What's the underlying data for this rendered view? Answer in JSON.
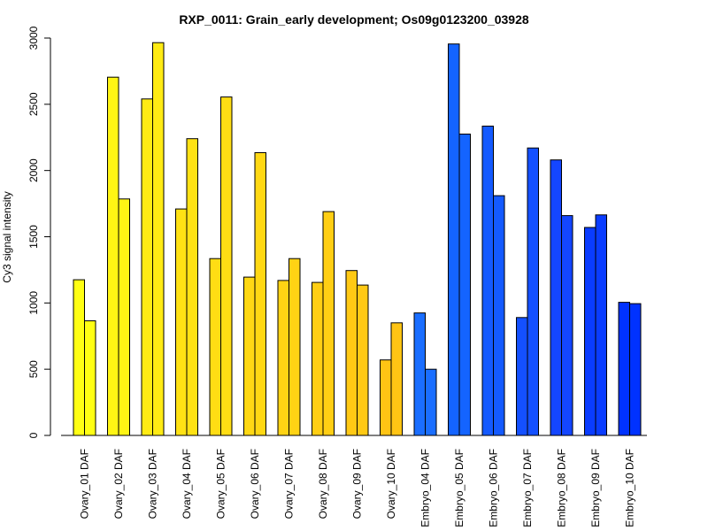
{
  "chart_data": {
    "type": "bar",
    "title": "RXP_0011: Grain_early development; Os09g0123200_03928",
    "xlabel": "",
    "ylabel": "Cy3 signal intensity",
    "ylim": [
      0,
      3000
    ],
    "yticks": [
      0,
      500,
      1000,
      1500,
      2000,
      2500,
      3000
    ],
    "grid": false,
    "legend": "none",
    "categories": [
      "Ovary_01 DAF",
      "Ovary_02 DAF",
      "Ovary_03 DAF",
      "Ovary_04 DAF",
      "Ovary_05 DAF",
      "Ovary_06 DAF",
      "Ovary_07 DAF",
      "Ovary_08 DAF",
      "Ovary_09 DAF",
      "Ovary_10 DAF",
      "Embryo_04 DAF",
      "Embryo_05 DAF",
      "Embryo_06 DAF",
      "Embryo_07 DAF",
      "Embryo_08 DAF",
      "Embryo_09 DAF",
      "Embryo_10 DAF"
    ],
    "colors": [
      "#ffff14",
      "#fff514",
      "#ffeb14",
      "#ffe214",
      "#ffdd14",
      "#ffd814",
      "#ffd314",
      "#ffce14",
      "#ffc914",
      "#ffc414",
      "#1a6eff",
      "#1464ff",
      "#145aff",
      "#1450ff",
      "#1446ff",
      "#0a3cff",
      "#0032ff"
    ],
    "series": [
      {
        "values": [
          1175,
          2705,
          2540,
          1710,
          1335,
          1195,
          1170,
          1155,
          1245,
          570,
          925,
          2955,
          2335,
          890,
          2080,
          1570,
          1005
        ]
      },
      {
        "values": [
          865,
          1785,
          2965,
          2240,
          2555,
          2135,
          1335,
          1690,
          1135,
          850,
          500,
          2275,
          1810,
          2170,
          1660,
          1665,
          995
        ]
      }
    ]
  }
}
